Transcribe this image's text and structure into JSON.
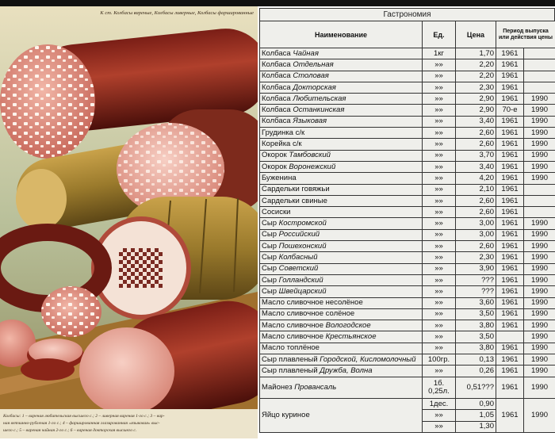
{
  "painting": {
    "header": "К ст. Колбасы вареные, Колбасы ливерные, Колбасы фаршированные",
    "caption": [
      "Колбасы: 1 – вареная любительская высшего с.; 2 – ливерная вареная 1-го с.; 3 – вар-",
      "ная ветчинно-рубленая 1-го с.; 4 – фаршированная глазированная «языковая» выс-",
      "шего с.; 5 – вареная чайная 2-го с.; 6 – вареная докторская высшего с."
    ]
  },
  "table": {
    "title": "Гастрономия",
    "columns": [
      "Наименование",
      "Ед.",
      "Цена",
      "Период выпуска или действия цены"
    ],
    "rows": [
      {
        "name": "Колбаса",
        "brand": "Чайная",
        "unit": "1кг",
        "price": "1,70",
        "from": "1961"
      },
      {
        "name": "Колбаса",
        "brand": "Отдельная",
        "unit": "»»",
        "price": "2,20",
        "from": "1961"
      },
      {
        "name": "Колбаса",
        "brand": "Столовая",
        "unit": "»»",
        "price": "2,20",
        "from": "1961"
      },
      {
        "name": "Колбаса",
        "brand": "Докторская",
        "unit": "»»",
        "price": "2,30",
        "from": "1961"
      },
      {
        "name": "Колбаса",
        "brand": "Любительская",
        "unit": "»»",
        "price": "2,90",
        "from": "1961",
        "to": "1990"
      },
      {
        "name": "Колбаса",
        "brand": "Останкинская",
        "unit": "»»",
        "price": "2,90",
        "from": "70-е",
        "to": "1990"
      },
      {
        "name": "Колбаса",
        "brand": "Языковая",
        "unit": "»»",
        "price": "3,40",
        "from": "1961",
        "to": "1990"
      },
      {
        "name": "Грудинка с/к",
        "unit": "»»",
        "price": "2,60",
        "from": "1961",
        "to": "1990"
      },
      {
        "name": "Корейка с/к",
        "unit": "»»",
        "price": "2,60",
        "from": "1961",
        "to": "1990"
      },
      {
        "name": "Окорок",
        "brand": "Тамбовский",
        "unit": "»»",
        "price": "3,70",
        "from": "1961",
        "to": "1990"
      },
      {
        "name": "Окорок",
        "brand": "Воронежский",
        "unit": "»»",
        "price": "3,40",
        "from": "1961",
        "to": "1990"
      },
      {
        "name": "Буженина",
        "unit": "»»",
        "price": "4,20",
        "from": "1961",
        "to": "1990"
      },
      {
        "name": "Сардельки говяжьи",
        "unit": "»»",
        "price": "2,10",
        "from": "1961"
      },
      {
        "name": "Сардельки свиные",
        "unit": "»»",
        "price": "2,60",
        "from": "1961"
      },
      {
        "name": "Сосиски",
        "unit": "»»",
        "price": "2,60",
        "from": "1961"
      },
      {
        "name": "Сыр",
        "brand": "Костромской",
        "unit": "»»",
        "price": "3,00",
        "from": "1961",
        "to": "1990"
      },
      {
        "name": "Сыр",
        "brand": "Российский",
        "unit": "»»",
        "price": "3,00",
        "from": "1961",
        "to": "1990"
      },
      {
        "name": "Сыр",
        "brand": "Пошехонский",
        "unit": "»»",
        "price": "2,60",
        "from": "1961",
        "to": "1990"
      },
      {
        "name": "Сыр",
        "brand": "Колбасный",
        "unit": "»»",
        "price": "2,30",
        "from": "1961",
        "to": "1990"
      },
      {
        "name": "Сыр",
        "brand": "Советский",
        "unit": "»»",
        "price": "3,90",
        "from": "1961",
        "to": "1990"
      },
      {
        "name": "Сыр",
        "brand": "Голландский",
        "unit": "»»",
        "price": "???",
        "from": "1961",
        "to": "1990"
      },
      {
        "name": "Сыр",
        "brand": "Швейцарский",
        "unit": "»»",
        "price": "???",
        "from": "1961",
        "to": "1990"
      },
      {
        "name": "Масло сливочное несолёное",
        "unit": "»»",
        "price": "3,60",
        "from": "1961",
        "to": "1990"
      },
      {
        "name": "Масло сливочное солёное",
        "unit": "»»",
        "price": "3,50",
        "from": "1961",
        "to": "1990"
      },
      {
        "name": "Масло сливочное",
        "brand": "Вологодское",
        "unit": "»»",
        "price": "3,80",
        "from": "1961",
        "to": "1990"
      },
      {
        "name": "Масло сливочное",
        "brand": "Крестьянское",
        "unit": "»»",
        "price": "3,50",
        "to": "1990"
      },
      {
        "name": "Масло топлёное",
        "unit": "»»",
        "price": "3,80",
        "from": "1961",
        "to": "1990"
      },
      {
        "name": "Сыр плавленый",
        "brand": "Городской, Кисломолочный",
        "unit": "100гр.",
        "price": "0,13",
        "from": "1961",
        "to": "1990"
      },
      {
        "name": "Сыр плавленый",
        "brand": "Дружба, Волна",
        "unit": "»»",
        "price": "0,26",
        "from": "1961",
        "to": "1990"
      },
      {
        "name": "Майонез",
        "brand": "Провансаль",
        "unit": "1б. 0,25л.",
        "price": "0,51???",
        "from": "1961",
        "to": "1990"
      },
      {
        "name": "Яйцо куриное",
        "unit": [
          "1дес.",
          "»»",
          "»»"
        ],
        "price": [
          "0,90",
          "1,05",
          "1,30"
        ],
        "from": "1961",
        "to": "1990"
      }
    ]
  }
}
